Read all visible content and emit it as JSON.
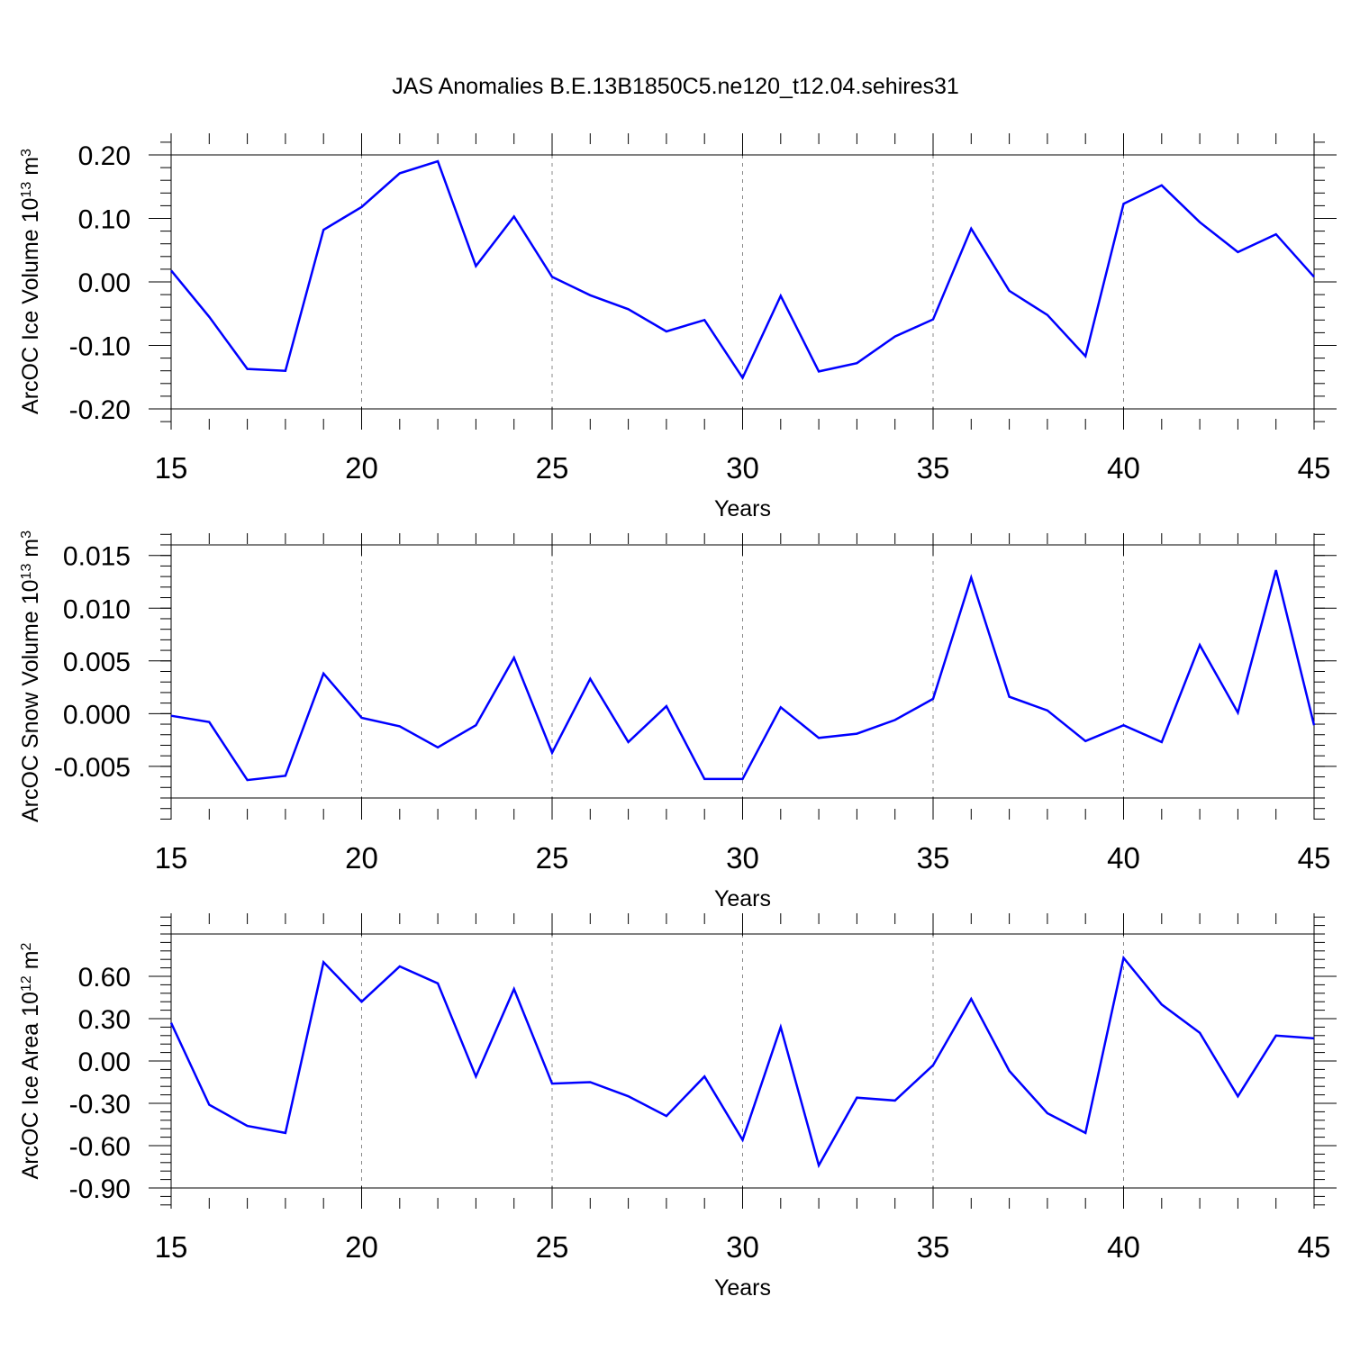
{
  "title": "JAS Anomalies B.E.13B1850C5.ne120_t12.04.sehires31",
  "series_color": "#0000ff",
  "grid_color": "#888888",
  "chart_data": [
    {
      "type": "line",
      "title": "JAS Anomalies B.E.13B1850C5.ne120_t12.04.sehires31",
      "ylabel_prefix": "ArcOC Ice Volume 10",
      "ylabel_exp": "13",
      "ylabel_unit": " m",
      "ylabel_unit_exp": "3",
      "xlabel": "Years",
      "xlim": [
        15,
        45
      ],
      "ylim": [
        -0.2,
        0.2
      ],
      "xticks": [
        15,
        20,
        25,
        30,
        35,
        40,
        45
      ],
      "yticks": [
        -0.2,
        -0.1,
        0.0,
        0.1,
        0.2
      ],
      "ytick_labels": [
        "-0.20",
        "-0.10",
        "0.00",
        "0.10",
        "0.20"
      ],
      "x": [
        15,
        16,
        17,
        18,
        19,
        20,
        21,
        22,
        23,
        24,
        25,
        26,
        27,
        28,
        29,
        30,
        31,
        32,
        33,
        34,
        35,
        36,
        37,
        38,
        39,
        40,
        41,
        42,
        43,
        44,
        45
      ],
      "y": [
        0.018,
        -0.055,
        -0.137,
        -0.14,
        0.082,
        0.118,
        0.171,
        0.19,
        0.025,
        0.103,
        0.008,
        -0.021,
        -0.043,
        -0.078,
        -0.06,
        -0.151,
        -0.022,
        -0.141,
        -0.128,
        -0.086,
        -0.059,
        0.084,
        -0.014,
        -0.052,
        -0.117,
        0.123,
        0.152,
        0.094,
        0.047,
        0.075,
        0.008
      ]
    },
    {
      "type": "line",
      "ylabel_prefix": "ArcOC Snow Volume 10",
      "ylabel_exp": "13",
      "ylabel_unit": " m",
      "ylabel_unit_exp": "3",
      "xlabel": "Years",
      "xlim": [
        15,
        45
      ],
      "ylim": [
        -0.008,
        0.016
      ],
      "xticks": [
        15,
        20,
        25,
        30,
        35,
        40,
        45
      ],
      "yticks": [
        -0.005,
        0.0,
        0.005,
        0.01,
        0.015
      ],
      "ytick_labels": [
        "-0.005",
        "0.000",
        "0.005",
        "0.010",
        "0.015"
      ],
      "x": [
        15,
        16,
        17,
        18,
        19,
        20,
        21,
        22,
        23,
        24,
        25,
        26,
        27,
        28,
        29,
        30,
        31,
        32,
        33,
        34,
        35,
        36,
        37,
        38,
        39,
        40,
        41,
        42,
        43,
        44,
        45
      ],
      "y": [
        -0.0002,
        -0.0008,
        -0.0063,
        -0.0059,
        0.0038,
        -0.0004,
        -0.0012,
        -0.0032,
        -0.0011,
        0.0053,
        -0.0037,
        0.0033,
        -0.0027,
        0.0007,
        -0.0062,
        -0.0062,
        0.0006,
        -0.0023,
        -0.0019,
        -0.0006,
        0.0014,
        0.0129,
        0.0016,
        0.0003,
        -0.0026,
        -0.0011,
        -0.0027,
        0.0065,
        0.0001,
        0.0136,
        -0.0011
      ]
    },
    {
      "type": "line",
      "ylabel_prefix": "ArcOC Ice Area 10",
      "ylabel_exp": "12",
      "ylabel_unit": " m",
      "ylabel_unit_exp": "2",
      "xlabel": "Years",
      "xlim": [
        15,
        45
      ],
      "ylim": [
        -0.9,
        0.9
      ],
      "xticks": [
        15,
        20,
        25,
        30,
        35,
        40,
        45
      ],
      "yticks": [
        -0.9,
        -0.6,
        -0.3,
        0.0,
        0.3,
        0.6
      ],
      "ytick_labels": [
        "-0.90",
        "-0.60",
        "-0.30",
        "0.00",
        "0.30",
        "0.60"
      ],
      "x": [
        15,
        16,
        17,
        18,
        19,
        20,
        21,
        22,
        23,
        24,
        25,
        26,
        27,
        28,
        29,
        30,
        31,
        32,
        33,
        34,
        35,
        36,
        37,
        38,
        39,
        40,
        41,
        42,
        43,
        44,
        45
      ],
      "y": [
        0.27,
        -0.31,
        -0.46,
        -0.51,
        0.7,
        0.42,
        0.67,
        0.55,
        -0.11,
        0.51,
        -0.16,
        -0.15,
        -0.25,
        -0.39,
        -0.11,
        -0.56,
        0.24,
        -0.74,
        -0.26,
        -0.28,
        -0.03,
        0.44,
        -0.07,
        -0.37,
        -0.51,
        0.73,
        0.4,
        0.2,
        -0.25,
        0.18,
        0.16
      ]
    }
  ]
}
